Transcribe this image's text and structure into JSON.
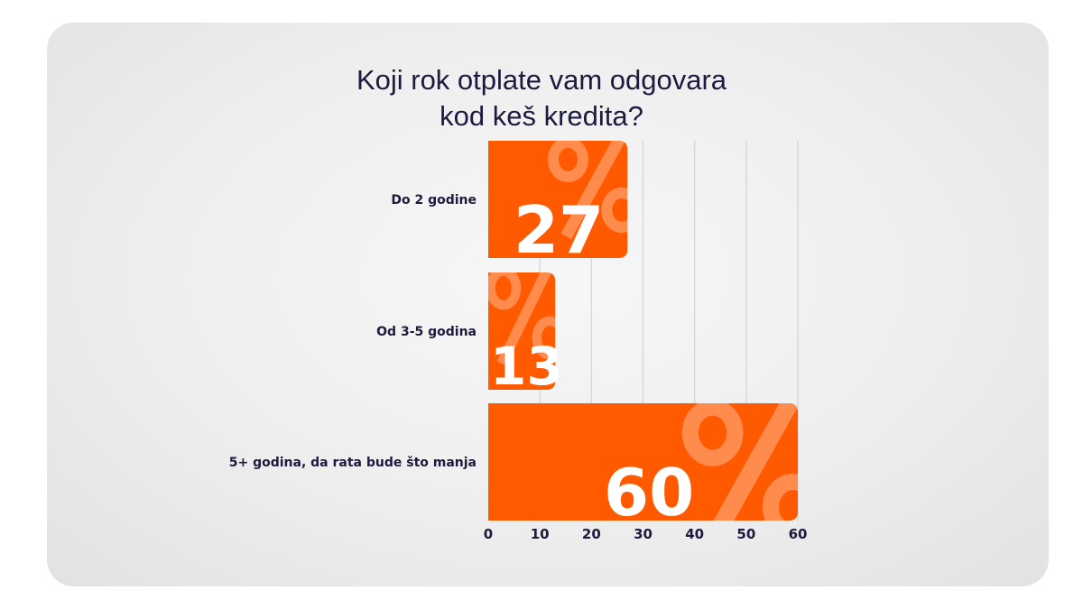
{
  "chart_data": {
    "type": "bar",
    "orientation": "horizontal",
    "title": [
      "Koji rok otplate vam odgovara",
      "kod keš kredita?"
    ],
    "categories": [
      "Do 2 godine",
      "Od 3-5 godina",
      "5+ godina, da rata bude što manja"
    ],
    "values": [
      27,
      13,
      60
    ],
    "value_suffix": "%",
    "xlim": [
      0,
      60
    ],
    "xticks": [
      0,
      10,
      20,
      30,
      40,
      50,
      60
    ],
    "grid": true,
    "xlabel": "",
    "ylabel": "",
    "bar_color": "#ff5a00",
    "text_color": "#1c1a3d"
  }
}
